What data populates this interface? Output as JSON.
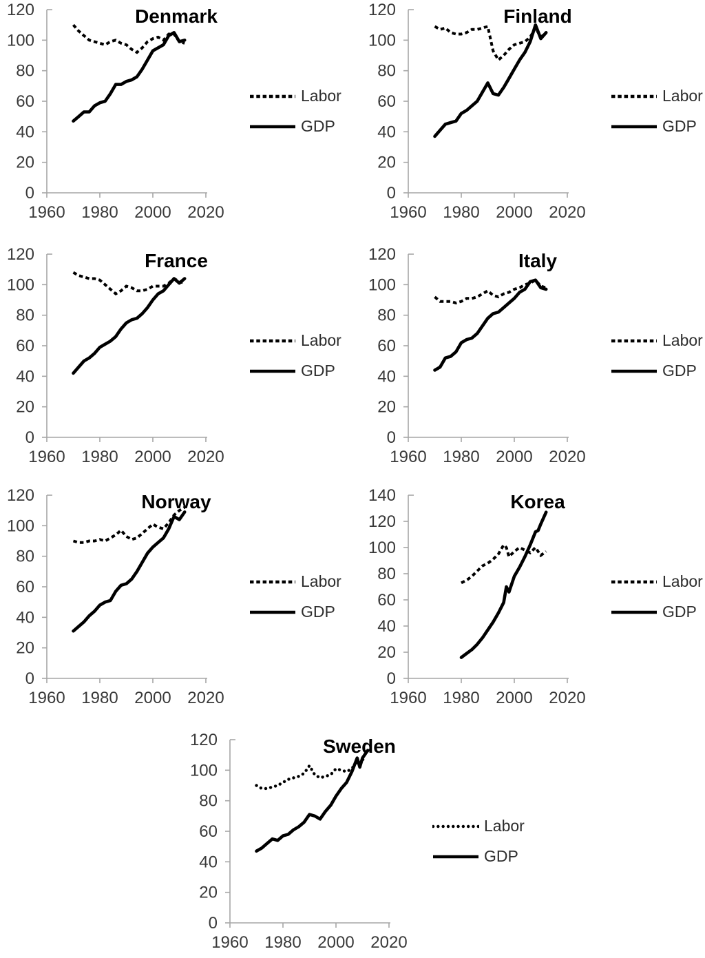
{
  "figure": {
    "background": "#ffffff",
    "colors": {
      "line": "#000000",
      "axis": "#a6a6a6",
      "tick_label": "#3a3a3a",
      "legend_text": "#2e2e2e"
    }
  },
  "chart_data": [
    {
      "type": "line",
      "title": "Denmark",
      "xlim": [
        1960,
        2023
      ],
      "ylim": [
        0,
        120
      ],
      "grid": false,
      "legend_position": "right",
      "x_ticks": [
        1960,
        1980,
        2000,
        2020
      ],
      "y_ticks": [
        0,
        20,
        40,
        60,
        80,
        100,
        120
      ],
      "legend": [
        "Labor",
        "GDP"
      ],
      "series": [
        {
          "name": "Labor",
          "line_style": "dashed",
          "years": [
            1970,
            1972,
            1974,
            1976,
            1978,
            1980,
            1982,
            1984,
            1986,
            1988,
            1990,
            1992,
            1994,
            1996,
            1998,
            2000,
            2002,
            2004,
            2006,
            2008,
            2010,
            2012
          ],
          "values": [
            110,
            106,
            103,
            100,
            99,
            98,
            97,
            99,
            100,
            98,
            97,
            94,
            92,
            95,
            99,
            101,
            102,
            100,
            104,
            104,
            99,
            98
          ]
        },
        {
          "name": "GDP",
          "line_style": "solid",
          "years": [
            1970,
            1972,
            1974,
            1976,
            1978,
            1980,
            1982,
            1984,
            1986,
            1988,
            1990,
            1992,
            1994,
            1996,
            1998,
            2000,
            2002,
            2004,
            2006,
            2008,
            2010,
            2012
          ],
          "values": [
            47,
            50,
            53,
            53,
            57,
            59,
            60,
            65,
            71,
            71,
            73,
            74,
            76,
            81,
            87,
            93,
            95,
            97,
            103,
            105,
            99,
            100
          ]
        }
      ]
    },
    {
      "type": "line",
      "title": "Finland",
      "xlim": [
        1960,
        2023
      ],
      "ylim": [
        0,
        120
      ],
      "grid": false,
      "legend_position": "right",
      "x_ticks": [
        1960,
        1980,
        2000,
        2020
      ],
      "y_ticks": [
        0,
        20,
        40,
        60,
        80,
        100,
        120
      ],
      "legend": [
        "Labor",
        "GDP"
      ],
      "series": [
        {
          "name": "Labor",
          "line_style": "dashed",
          "years": [
            1970,
            1972,
            1974,
            1976,
            1978,
            1980,
            1982,
            1984,
            1986,
            1988,
            1990,
            1992,
            1994,
            1996,
            1998,
            2000,
            2002,
            2004,
            2006,
            2008,
            2010,
            2012
          ],
          "values": [
            109,
            107,
            108,
            105,
            104,
            104,
            105,
            107,
            107,
            108,
            109,
            93,
            87,
            90,
            94,
            97,
            98,
            99,
            102,
            108,
            102,
            105
          ]
        },
        {
          "name": "GDP",
          "line_style": "solid",
          "years": [
            1970,
            1972,
            1974,
            1976,
            1978,
            1980,
            1982,
            1984,
            1986,
            1988,
            1990,
            1992,
            1994,
            1996,
            1998,
            2000,
            2002,
            2004,
            2006,
            2008,
            2010,
            2012
          ],
          "values": [
            37,
            41,
            45,
            46,
            47,
            52,
            54,
            57,
            60,
            66,
            72,
            65,
            64,
            69,
            75,
            81,
            87,
            92,
            99,
            110,
            101,
            105
          ]
        }
      ]
    },
    {
      "type": "line",
      "title": "France",
      "xlim": [
        1960,
        2023
      ],
      "ylim": [
        0,
        120
      ],
      "grid": false,
      "legend_position": "right",
      "x_ticks": [
        1960,
        1980,
        2000,
        2020
      ],
      "y_ticks": [
        0,
        20,
        40,
        60,
        80,
        100,
        120
      ],
      "legend": [
        "Labor",
        "GDP"
      ],
      "series": [
        {
          "name": "Labor",
          "line_style": "dashed",
          "years": [
            1970,
            1972,
            1974,
            1976,
            1978,
            1980,
            1982,
            1984,
            1986,
            1988,
            1990,
            1992,
            1994,
            1996,
            1998,
            2000,
            2002,
            2004,
            2006,
            2008,
            2010,
            2012
          ],
          "values": [
            108,
            106,
            105,
            104,
            104,
            103,
            100,
            97,
            94,
            96,
            99,
            98,
            96,
            96,
            97,
            99,
            99,
            99,
            101,
            104,
            102,
            101
          ]
        },
        {
          "name": "GDP",
          "line_style": "solid",
          "years": [
            1970,
            1972,
            1974,
            1976,
            1978,
            1980,
            1982,
            1984,
            1986,
            1988,
            1990,
            1992,
            1994,
            1996,
            1998,
            2000,
            2002,
            2004,
            2006,
            2008,
            2010,
            2012
          ],
          "values": [
            42,
            46,
            50,
            52,
            55,
            59,
            61,
            63,
            66,
            71,
            75,
            77,
            78,
            81,
            85,
            90,
            94,
            96,
            100,
            104,
            101,
            104
          ]
        }
      ]
    },
    {
      "type": "line",
      "title": "Italy",
      "xlim": [
        1960,
        2023
      ],
      "ylim": [
        0,
        120
      ],
      "grid": false,
      "legend_position": "right",
      "x_ticks": [
        1960,
        1980,
        2000,
        2020
      ],
      "y_ticks": [
        0,
        20,
        40,
        60,
        80,
        100,
        120
      ],
      "legend": [
        "Labor",
        "GDP"
      ],
      "series": [
        {
          "name": "Labor",
          "line_style": "dashed",
          "years": [
            1970,
            1972,
            1974,
            1976,
            1978,
            1980,
            1982,
            1984,
            1986,
            1988,
            1990,
            1992,
            1994,
            1996,
            1998,
            2000,
            2002,
            2004,
            2006,
            2008,
            2010,
            2012
          ],
          "values": [
            92,
            89,
            89,
            89,
            88,
            89,
            91,
            91,
            92,
            94,
            96,
            93,
            92,
            94,
            95,
            97,
            98,
            100,
            101,
            103,
            99,
            98
          ]
        },
        {
          "name": "GDP",
          "line_style": "solid",
          "years": [
            1970,
            1972,
            1974,
            1976,
            1978,
            1980,
            1982,
            1984,
            1986,
            1988,
            1990,
            1992,
            1994,
            1996,
            1998,
            2000,
            2002,
            2004,
            2006,
            2008,
            2010,
            2012
          ],
          "values": [
            44,
            46,
            52,
            53,
            56,
            62,
            64,
            65,
            68,
            73,
            78,
            81,
            82,
            85,
            88,
            91,
            95,
            97,
            102,
            103,
            98,
            97
          ]
        }
      ]
    },
    {
      "type": "line",
      "title": "Norway",
      "xlim": [
        1960,
        2023
      ],
      "ylim": [
        0,
        120
      ],
      "grid": false,
      "legend_position": "right",
      "x_ticks": [
        1960,
        1980,
        2000,
        2020
      ],
      "y_ticks": [
        0,
        20,
        40,
        60,
        80,
        100,
        120
      ],
      "legend": [
        "Labor",
        "GDP"
      ],
      "series": [
        {
          "name": "Labor",
          "line_style": "dashed",
          "years": [
            1970,
            1972,
            1974,
            1976,
            1978,
            1980,
            1982,
            1984,
            1986,
            1988,
            1990,
            1992,
            1994,
            1996,
            1998,
            2000,
            2002,
            2004,
            2006,
            2008,
            2010,
            2012
          ],
          "values": [
            90,
            89,
            89,
            90,
            90,
            91,
            90,
            92,
            94,
            97,
            93,
            91,
            92,
            95,
            98,
            101,
            99,
            98,
            102,
            107,
            110,
            112
          ]
        },
        {
          "name": "GDP",
          "line_style": "solid",
          "years": [
            1970,
            1972,
            1974,
            1976,
            1978,
            1980,
            1982,
            1984,
            1986,
            1988,
            1990,
            1992,
            1994,
            1996,
            1998,
            2000,
            2002,
            2004,
            2006,
            2008,
            2010,
            2012
          ],
          "values": [
            31,
            34,
            37,
            41,
            44,
            48,
            50,
            51,
            57,
            61,
            62,
            65,
            70,
            76,
            82,
            86,
            89,
            92,
            98,
            106,
            104,
            109
          ]
        }
      ]
    },
    {
      "type": "line",
      "title": "Korea",
      "xlim": [
        1960,
        2023
      ],
      "ylim": [
        0,
        140
      ],
      "grid": false,
      "legend_position": "right",
      "x_ticks": [
        1960,
        1980,
        2000,
        2020
      ],
      "y_ticks": [
        0,
        20,
        40,
        60,
        80,
        100,
        120,
        140
      ],
      "legend": [
        "Labor",
        "GDP"
      ],
      "series": [
        {
          "name": "Labor",
          "line_style": "dashed",
          "years": [
            1980,
            1982,
            1984,
            1986,
            1988,
            1990,
            1992,
            1994,
            1996,
            1997,
            1998,
            2000,
            2002,
            2004,
            2006,
            2008,
            2009,
            2010,
            2012
          ],
          "values": [
            73,
            75,
            78,
            82,
            86,
            88,
            91,
            95,
            102,
            100,
            93,
            97,
            100,
            98,
            96,
            100,
            97,
            94,
            97
          ]
        },
        {
          "name": "GDP",
          "line_style": "solid",
          "years": [
            1980,
            1982,
            1984,
            1986,
            1988,
            1990,
            1992,
            1994,
            1996,
            1997,
            1998,
            2000,
            2002,
            2004,
            2006,
            2008,
            2009,
            2010,
            2012
          ],
          "values": [
            16,
            19,
            22,
            26,
            31,
            37,
            43,
            50,
            58,
            70,
            66,
            78,
            85,
            93,
            102,
            112,
            113,
            118,
            127
          ]
        }
      ]
    },
    {
      "type": "line",
      "title": "Sweden",
      "xlim": [
        1960,
        2023
      ],
      "ylim": [
        0,
        120
      ],
      "grid": false,
      "legend_position": "right",
      "x_ticks": [
        1960,
        1980,
        2000,
        2020
      ],
      "y_ticks": [
        0,
        20,
        40,
        60,
        80,
        100,
        120
      ],
      "legend": [
        "Labor",
        "GDP"
      ],
      "series": [
        {
          "name": "Labor",
          "line_style": "dotted",
          "years": [
            1970,
            1972,
            1974,
            1976,
            1978,
            1980,
            1982,
            1984,
            1986,
            1988,
            1990,
            1992,
            1994,
            1996,
            1998,
            2000,
            2002,
            2004,
            2006,
            2008,
            2009,
            2010,
            2012
          ],
          "values": [
            90,
            88,
            88,
            89,
            90,
            92,
            94,
            95,
            96,
            98,
            103,
            97,
            95,
            96,
            97,
            101,
            100,
            99,
            101,
            106,
            103,
            107,
            107
          ]
        },
        {
          "name": "GDP",
          "line_style": "solid",
          "years": [
            1970,
            1972,
            1974,
            1976,
            1978,
            1980,
            1982,
            1984,
            1986,
            1988,
            1990,
            1992,
            1994,
            1996,
            1998,
            2000,
            2002,
            2004,
            2006,
            2008,
            2009,
            2010,
            2012
          ],
          "values": [
            47,
            49,
            52,
            55,
            54,
            57,
            58,
            61,
            63,
            66,
            71,
            70,
            68,
            73,
            77,
            83,
            88,
            92,
            99,
            108,
            102,
            108,
            113
          ]
        }
      ]
    }
  ]
}
